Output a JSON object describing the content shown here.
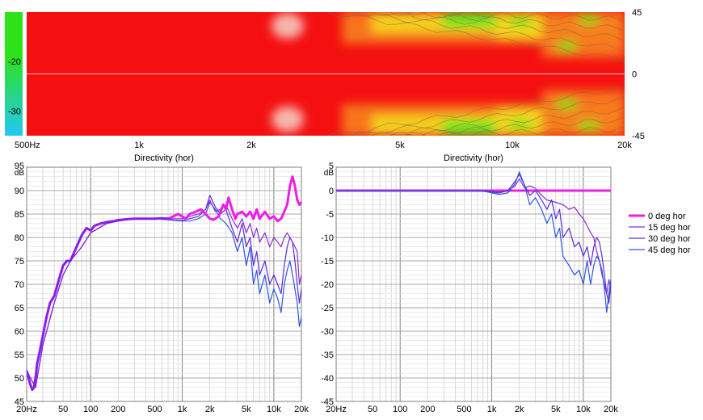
{
  "chart_data": [
    {
      "type": "heatmap",
      "title": "",
      "x_scale": "log",
      "xlim": [
        500,
        20000
      ],
      "ylim": [
        -45,
        45
      ],
      "x_ticks": [
        {
          "v": 500,
          "label": "500Hz"
        },
        {
          "v": 1000,
          "label": "1k"
        },
        {
          "v": 2000,
          "label": "2k"
        },
        {
          "v": 5000,
          "label": "5k"
        },
        {
          "v": 10000,
          "label": "10k"
        },
        {
          "v": 20000,
          "label": "20k"
        }
      ],
      "y_ticks_right": [
        {
          "v": 45,
          "label": "45"
        },
        {
          "v": 0,
          "label": "0"
        },
        {
          "v": -45,
          "label": "-45"
        }
      ],
      "colorbar": {
        "ticks": [
          {
            "v": -20,
            "label": "-20"
          },
          {
            "v": -30,
            "label": "-30"
          }
        ],
        "colors": [
          "#ff3a1e",
          "#ffe400",
          "#2ee21a",
          "#2bd6ee"
        ],
        "range": [
          -10,
          -35
        ]
      },
      "colors": {
        "hot": "#f41010",
        "warm": "#f87a1e",
        "mid": "#f4d41e",
        "green": "#5ee81a",
        "light": "#f7d2c8"
      }
    },
    {
      "type": "line",
      "title": "Directivity (hor)",
      "ylabel": "dB",
      "x_scale": "log",
      "xlim": [
        20,
        20000
      ],
      "ylim": [
        45,
        95
      ],
      "x_ticks": [
        {
          "v": 20,
          "label": "20Hz"
        },
        {
          "v": 50,
          "label": "50"
        },
        {
          "v": 100,
          "label": "100"
        },
        {
          "v": 200,
          "label": "200"
        },
        {
          "v": 500,
          "label": "500"
        },
        {
          "v": 1000,
          "label": "1k"
        },
        {
          "v": 2000,
          "label": "2k"
        },
        {
          "v": 5000,
          "label": "5k"
        },
        {
          "v": 10000,
          "label": "10k"
        },
        {
          "v": 20000,
          "label": "20k"
        }
      ],
      "y_ticks": [
        {
          "v": 95,
          "label": "95"
        },
        {
          "v": 90,
          "label": "90"
        },
        {
          "v": 85,
          "label": "85"
        },
        {
          "v": 80,
          "label": "80"
        },
        {
          "v": 75,
          "label": "75"
        },
        {
          "v": 70,
          "label": "70"
        },
        {
          "v": 65,
          "label": "65"
        },
        {
          "v": 60,
          "label": "60"
        },
        {
          "v": 55,
          "label": "55"
        },
        {
          "v": 50,
          "label": "50"
        },
        {
          "v": 45,
          "label": "45"
        }
      ],
      "series": [
        {
          "name": "45 deg hor",
          "color": "#2f54e0",
          "width": 1.2,
          "x": [
            20,
            25,
            30,
            40,
            50,
            60,
            80,
            100,
            150,
            200,
            300,
            500,
            700,
            1000,
            1200,
            1500,
            1800,
            2000,
            2300,
            2600,
            3000,
            3500,
            4000,
            4500,
            5000,
            5500,
            6000,
            6500,
            7000,
            8000,
            9000,
            10000,
            11000,
            12000,
            13000,
            14000,
            15000,
            16000,
            17000,
            18000,
            19000,
            20000
          ],
          "y": [
            51.5,
            48,
            57,
            66,
            72,
            75,
            78,
            81,
            83,
            83.5,
            84,
            84,
            83.8,
            83.5,
            83.5,
            84,
            85,
            87.5,
            86,
            84,
            83,
            81,
            77,
            80,
            74,
            78,
            70,
            73,
            68,
            72,
            66,
            69,
            67,
            64,
            70,
            73,
            75,
            72,
            69,
            66,
            61,
            63
          ]
        },
        {
          "name": "30 deg hor",
          "color": "#5a2cd6",
          "width": 1.2,
          "x": [
            20,
            25,
            30,
            40,
            50,
            60,
            80,
            100,
            150,
            200,
            300,
            500,
            700,
            1000,
            1200,
            1500,
            1800,
            2000,
            2300,
            2600,
            3000,
            3500,
            4000,
            4500,
            5000,
            5500,
            6000,
            6500,
            7000,
            8000,
            9000,
            10000,
            11000,
            12000,
            13000,
            14000,
            15000,
            16000,
            17000,
            18000,
            19000,
            20000
          ],
          "y": [
            51.5,
            48,
            57,
            66,
            72,
            75,
            78,
            81,
            83,
            83.5,
            84,
            84,
            83.8,
            83.6,
            84,
            84.5,
            86,
            89,
            86.5,
            85,
            86,
            82,
            79,
            83,
            78,
            80,
            74,
            77,
            72,
            75,
            70,
            72,
            70,
            68,
            74,
            78,
            80,
            79,
            75,
            70,
            66,
            69
          ]
        },
        {
          "name": "15 deg hor",
          "color": "#8a2cd8",
          "width": 1.2,
          "x": [
            20,
            25,
            30,
            40,
            50,
            60,
            80,
            100,
            150,
            200,
            300,
            500,
            700,
            1000,
            1200,
            1500,
            1800,
            2000,
            2300,
            2600,
            3000,
            3500,
            4000,
            4500,
            5000,
            5500,
            6000,
            6500,
            7000,
            8000,
            9000,
            10000,
            11000,
            12000,
            13000,
            14000,
            15000,
            16000,
            17000,
            18000,
            19000,
            20000
          ],
          "y": [
            51.5,
            48,
            57,
            66,
            72,
            75,
            78,
            81,
            83,
            83.5,
            84,
            84,
            84,
            84,
            84.5,
            85,
            86,
            88,
            85.5,
            86,
            87,
            84,
            82,
            84,
            81,
            83,
            80,
            82,
            79,
            81,
            78,
            80,
            79,
            78,
            80,
            81,
            80,
            79,
            78,
            77,
            70,
            72
          ]
        },
        {
          "name": "0 deg hor",
          "color": "#ee1ee8",
          "width": 3,
          "x": [
            700,
            800,
            900,
            1000,
            1100,
            1200,
            1400,
            1600,
            1800,
            2000,
            2200,
            2500,
            2800,
            3000,
            3200,
            3500,
            3800,
            4000,
            4500,
            5000,
            5500,
            6000,
            6500,
            7000,
            8000,
            9000,
            10000,
            11000,
            12000,
            13000,
            14000,
            15000,
            16000,
            17000,
            18000,
            19000,
            20000
          ],
          "y": [
            84,
            84.5,
            85,
            84.5,
            84,
            85,
            85.5,
            86,
            85,
            84,
            83.8,
            84.5,
            87,
            86,
            88.5,
            86,
            84,
            85,
            85.5,
            84.5,
            85.5,
            84,
            86,
            84,
            85.5,
            84,
            84.5,
            83.5,
            84,
            85.5,
            87,
            91,
            93,
            91,
            88,
            87,
            87.5
          ]
        },
        {
          "name": "",
          "color": "#8a1ee8",
          "width": 3,
          "x": [
            20,
            21,
            22,
            23,
            24,
            25,
            26,
            28,
            30,
            33,
            36,
            40,
            45,
            50,
            55,
            60,
            70,
            80,
            90,
            100,
            110,
            130,
            150,
            180,
            200,
            250,
            300,
            400,
            500,
            600,
            700
          ],
          "y": [
            51.5,
            50,
            48.5,
            47.5,
            48,
            50,
            53,
            56,
            59,
            63,
            66,
            67.5,
            71,
            74,
            75,
            75,
            78,
            80.5,
            82,
            81.5,
            82.5,
            83,
            83.3,
            83.5,
            83.7,
            83.9,
            84,
            84,
            84,
            84.1,
            84
          ]
        }
      ]
    },
    {
      "type": "line",
      "title": "Directivity (hor)",
      "ylabel": "dB",
      "x_scale": "log",
      "xlim": [
        20,
        20000
      ],
      "ylim": [
        -45,
        5
      ],
      "x_ticks": [
        {
          "v": 20,
          "label": "20Hz"
        },
        {
          "v": 50,
          "label": "50"
        },
        {
          "v": 100,
          "label": "100"
        },
        {
          "v": 200,
          "label": "200"
        },
        {
          "v": 500,
          "label": "500"
        },
        {
          "v": 1000,
          "label": "1k"
        },
        {
          "v": 2000,
          "label": "2k"
        },
        {
          "v": 5000,
          "label": "5k"
        },
        {
          "v": 10000,
          "label": "10k"
        },
        {
          "v": 20000,
          "label": "20k"
        }
      ],
      "y_ticks": [
        {
          "v": 5,
          "label": "5"
        },
        {
          "v": 0,
          "label": "0"
        },
        {
          "v": -5,
          "label": "-5"
        },
        {
          "v": -10,
          "label": "-10"
        },
        {
          "v": -15,
          "label": "-15"
        },
        {
          "v": -20,
          "label": "-20"
        },
        {
          "v": -25,
          "label": "-25"
        },
        {
          "v": -30,
          "label": "-30"
        },
        {
          "v": -35,
          "label": "-35"
        },
        {
          "v": -40,
          "label": "-40"
        },
        {
          "v": -45,
          "label": "-45"
        }
      ],
      "series": [
        {
          "name": "0 deg hor",
          "color": "#ee1ee8",
          "width": 3,
          "x": [
            20,
            20000
          ],
          "y": [
            0,
            0
          ]
        },
        {
          "name": "15 deg hor",
          "color": "#8a2cd8",
          "width": 1.2,
          "x": [
            20,
            700,
            900,
            1200,
            1500,
            1800,
            2000,
            2300,
            2600,
            3000,
            3500,
            4000,
            5000,
            6000,
            7000,
            8000,
            9000,
            10000,
            11000,
            12000,
            13000,
            14000,
            15000,
            16000,
            17000,
            18000,
            19000,
            20000
          ],
          "y": [
            0,
            0,
            0,
            -0.3,
            0,
            1,
            2.5,
            0.5,
            1,
            0.5,
            -1,
            -2,
            -2.5,
            -3,
            -4,
            -3.5,
            -5,
            -6,
            -7.5,
            -9,
            -10,
            -13,
            -15,
            -18,
            -20,
            -22,
            -19,
            -21
          ]
        },
        {
          "name": "30 deg hor",
          "color": "#5a2cd6",
          "width": 1.2,
          "x": [
            20,
            700,
            900,
            1200,
            1500,
            1800,
            2000,
            2300,
            2600,
            3000,
            3500,
            4000,
            4500,
            5000,
            5500,
            6000,
            7000,
            8000,
            9000,
            10000,
            11000,
            12000,
            13000,
            14000,
            15000,
            16000,
            17000,
            18000,
            19000,
            20000
          ],
          "y": [
            0,
            0,
            -0.2,
            -0.5,
            0,
            2,
            3.5,
            1,
            -1,
            0,
            -2,
            -4,
            -2,
            -6,
            -4,
            -10,
            -8,
            -12,
            -11,
            -14,
            -12,
            -16,
            -12,
            -10,
            -11,
            -14,
            -18,
            -22,
            -24,
            -20
          ]
        },
        {
          "name": "45 deg hor",
          "color": "#2f54e0",
          "width": 1.2,
          "x": [
            20,
            700,
            900,
            1200,
            1500,
            1800,
            2000,
            2300,
            2600,
            3000,
            3500,
            4000,
            4500,
            5000,
            5500,
            6000,
            7000,
            8000,
            9000,
            10000,
            11000,
            12000,
            13000,
            14000,
            15000,
            16000,
            17000,
            18000,
            19000,
            20000
          ],
          "y": [
            0,
            0,
            -0.3,
            -0.8,
            -0.5,
            1.5,
            4,
            1,
            -3,
            -1.5,
            -4,
            -7,
            -5,
            -10,
            -8,
            -14,
            -16,
            -18,
            -17,
            -20,
            -15,
            -20,
            -16,
            -14,
            -15,
            -17,
            -21,
            -26,
            -22,
            -19
          ]
        }
      ]
    }
  ],
  "legend": {
    "placement": "right",
    "items": [
      {
        "label": "0 deg hor",
        "color": "#ee1ee8",
        "width": 3
      },
      {
        "label": "15 deg hor",
        "color": "#8a2cd8",
        "width": 1.2
      },
      {
        "label": "30 deg hor",
        "color": "#5a2cd6",
        "width": 1.2
      },
      {
        "label": "45 deg hor",
        "color": "#2f54e0",
        "width": 1.2
      }
    ]
  }
}
